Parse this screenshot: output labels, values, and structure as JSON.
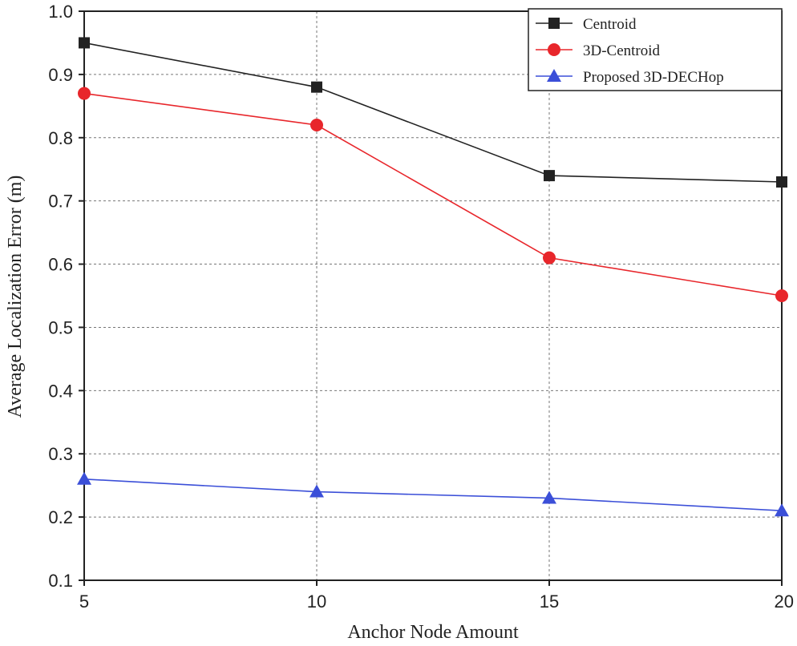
{
  "chart_data": {
    "type": "line",
    "title": "",
    "xlabel": "Anchor Node Amount",
    "ylabel": "Average Localization Error (m)",
    "x": [
      5,
      10,
      15,
      20
    ],
    "xlim": [
      5,
      20
    ],
    "ylim": [
      0.1,
      1.0
    ],
    "xticks": [
      "5",
      "10",
      "15",
      "20"
    ],
    "yticks": [
      "0.1",
      "0.2",
      "0.3",
      "0.4",
      "0.5",
      "0.6",
      "0.7",
      "0.8",
      "0.9",
      "1.0"
    ],
    "grid": true,
    "legend_position": "top-right",
    "series": [
      {
        "name": "Centroid",
        "values": [
          0.95,
          0.88,
          0.74,
          0.73
        ],
        "color": "#222222",
        "marker": "square"
      },
      {
        "name": "3D-Centroid",
        "values": [
          0.87,
          0.82,
          0.61,
          0.55
        ],
        "color": "#e8262b",
        "marker": "circle"
      },
      {
        "name": "Proposed 3D-DECHop",
        "values": [
          0.26,
          0.24,
          0.23,
          0.21
        ],
        "color": "#3b4fd8",
        "marker": "triangle"
      }
    ]
  }
}
